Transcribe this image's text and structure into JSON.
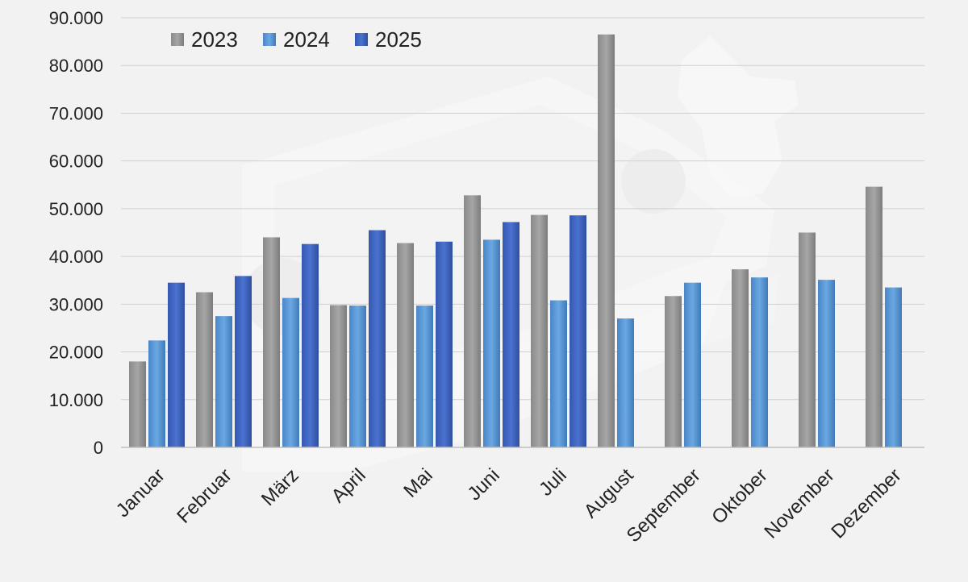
{
  "chart_data": {
    "type": "bar",
    "categories": [
      "Januar",
      "Februar",
      "März",
      "April",
      "Mai",
      "Juni",
      "Juli",
      "August",
      "September",
      "Oktober",
      "November",
      "Dezember"
    ],
    "series": [
      {
        "name": "2023",
        "color": "#8c8c8c",
        "values": [
          18000,
          32500,
          44000,
          29800,
          42800,
          52800,
          48700,
          86500,
          31700,
          37300,
          45000,
          54600
        ]
      },
      {
        "name": "2024",
        "color": "#4f8fd0",
        "values": [
          22400,
          27500,
          31300,
          29700,
          29700,
          43500,
          30800,
          27000,
          34500,
          35600,
          35100,
          33500
        ]
      },
      {
        "name": "2025",
        "color": "#3a63c0",
        "values": [
          34500,
          35900,
          42600,
          45500,
          43100,
          47200,
          48600,
          null,
          null,
          null,
          null,
          null
        ]
      }
    ],
    "yticks": [
      "0",
      "10.000",
      "20.000",
      "30.000",
      "40.000",
      "50.000",
      "60.000",
      "70.000",
      "80.000",
      "90.000"
    ],
    "ylim": [
      0,
      90000
    ],
    "grid": true,
    "legend": "top-left",
    "title": "",
    "xlabel": "",
    "ylabel": ""
  }
}
